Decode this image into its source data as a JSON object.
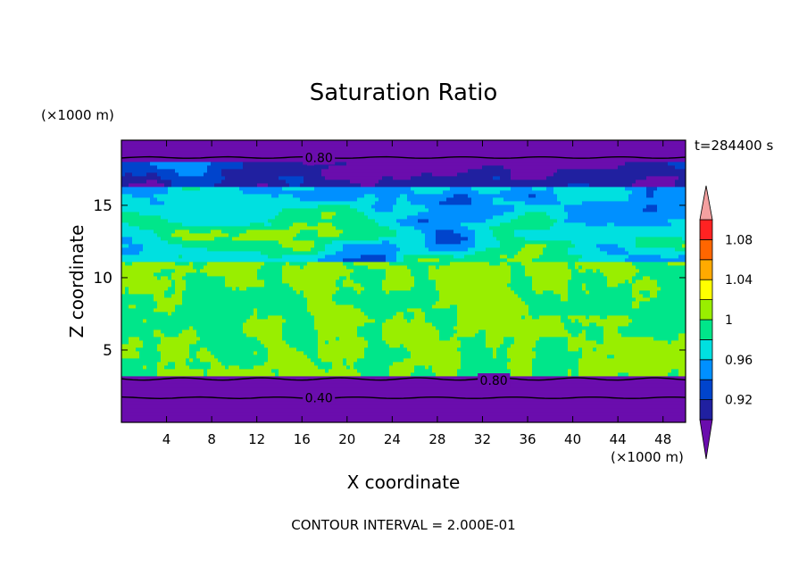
{
  "chart_data": {
    "type": "heatmap",
    "title": "Saturation Ratio",
    "xlabel": "X coordinate",
    "ylabel": "Z coordinate",
    "x_unit": "(×1000 m)",
    "y_unit": "(×1000 m)",
    "time_label": "t=284400 s",
    "footer": "CONTOUR INTERVAL = 2.000E-01",
    "xlim": [
      0,
      50
    ],
    "ylim": [
      0,
      19.5
    ],
    "x_ticks": [
      4,
      8,
      12,
      16,
      20,
      24,
      28,
      32,
      36,
      40,
      44,
      48
    ],
    "y_ticks": [
      5,
      10,
      15
    ],
    "contour_labels": [
      {
        "text": "0.80",
        "x": 17.5,
        "y": 18.3
      },
      {
        "text": "0.80",
        "x": 33.0,
        "y": 2.9
      },
      {
        "text": "0.40",
        "x": 17.5,
        "y": 1.7
      }
    ],
    "colorbar": {
      "tick_labels": [
        "0.92",
        "0.96",
        "1",
        "1.04",
        "1.08"
      ],
      "tick_values": [
        0.92,
        0.96,
        1.0,
        1.04,
        1.08
      ],
      "levels": [
        0.9,
        0.92,
        0.94,
        0.96,
        0.98,
        1.0,
        1.02,
        1.04,
        1.06,
        1.08,
        1.1
      ],
      "colors": [
        "#6a0dad",
        "#2020a0",
        "#0044cc",
        "#0090ff",
        "#00e0e0",
        "#00e68a",
        "#99ee00",
        "#ffff00",
        "#ffaa00",
        "#ff6600",
        "#ff2222",
        "#f4a0a0"
      ]
    }
  }
}
